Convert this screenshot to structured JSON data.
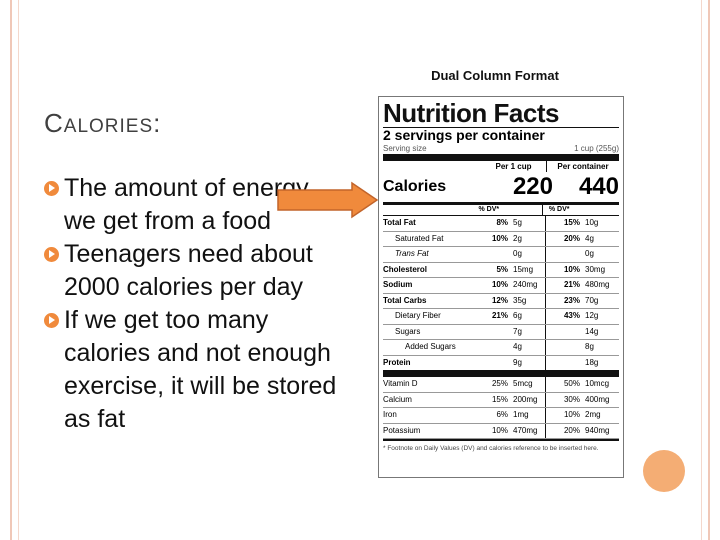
{
  "slide": {
    "title_cap": "C",
    "title_rest": "ALORIES",
    "title_colon": ":",
    "bullets": [
      "The amount of energy we get from a food",
      "Teenagers need about 2000 calories per day",
      "If we get too many calories and not enough exercise, it will be stored as fat"
    ]
  },
  "label": {
    "format_title": "Dual Column Format",
    "heading": "Nutrition Facts",
    "servings": "2 servings per container",
    "serving_size_label": "Serving size",
    "serving_size_value": "1 cup (255g)",
    "col1_header": "Per 1 cup",
    "col2_header": "Per container",
    "calories_label": "Calories",
    "calories_col1": "220",
    "calories_col2": "440",
    "dv_header_1": "% DV*",
    "dv_header_2": "% DV*",
    "nutrients": [
      {
        "name": "Total Fat",
        "p1": "8%",
        "a1": "5g",
        "p2": "15%",
        "a2": "10g"
      },
      {
        "name": "Saturated Fat",
        "p1": "10%",
        "a1": "2g",
        "p2": "20%",
        "a2": "4g"
      },
      {
        "name": "Trans Fat",
        "p1": "",
        "a1": "0g",
        "p2": "",
        "a2": "0g"
      },
      {
        "name": "Cholesterol",
        "p1": "5%",
        "a1": "15mg",
        "p2": "10%",
        "a2": "30mg"
      },
      {
        "name": "Sodium",
        "p1": "10%",
        "a1": "240mg",
        "p2": "21%",
        "a2": "480mg"
      },
      {
        "name": "Total Carbs",
        "p1": "12%",
        "a1": "35g",
        "p2": "23%",
        "a2": "70g"
      },
      {
        "name": "Dietary Fiber",
        "p1": "21%",
        "a1": "6g",
        "p2": "43%",
        "a2": "12g"
      },
      {
        "name": "Sugars",
        "p1": "",
        "a1": "7g",
        "p2": "",
        "a2": "14g"
      },
      {
        "name": "Added Sugars",
        "p1": "",
        "a1": "4g",
        "p2": "",
        "a2": "8g"
      },
      {
        "name": "Protein",
        "p1": "",
        "a1": "9g",
        "p2": "",
        "a2": "18g"
      }
    ],
    "vitamins": [
      {
        "name": "Vitamin D",
        "p1": "25%",
        "a1": "5mcg",
        "p2": "50%",
        "a2": "10mcg"
      },
      {
        "name": "Calcium",
        "p1": "15%",
        "a1": "200mg",
        "p2": "30%",
        "a2": "400mg"
      },
      {
        "name": "Iron",
        "p1": "6%",
        "a1": "1mg",
        "p2": "10%",
        "a2": "2mg"
      },
      {
        "name": "Potassium",
        "p1": "10%",
        "a1": "470mg",
        "p2": "20%",
        "a2": "940mg"
      }
    ],
    "footnote": "* Footnote on Daily Values (DV) and calories reference to be inserted here."
  },
  "colors": {
    "accent": "#f08a3c",
    "frame": "#f0c8b8",
    "circle": "#f4ad74"
  }
}
